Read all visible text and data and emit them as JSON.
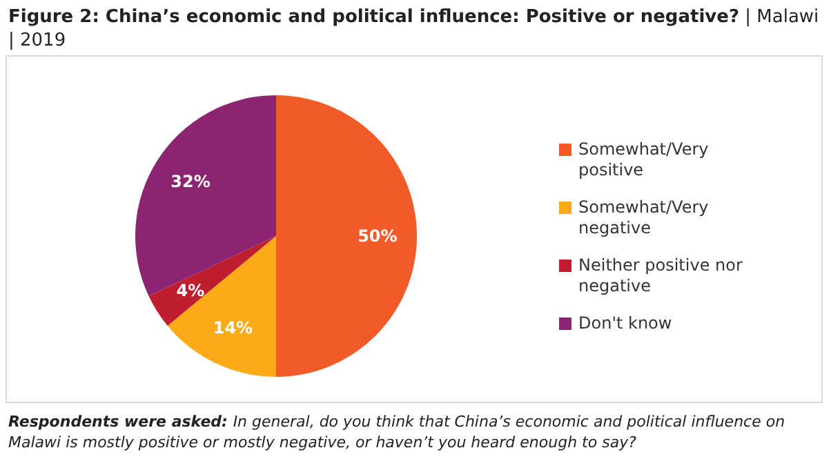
{
  "chart_data": {
    "type": "pie",
    "title": "Figure 2: China’s economic and political influence: Positive or negative?",
    "subtitle": "| Malawi | 2019",
    "categories": [
      "Somewhat/Very positive",
      "Somewhat/Very negative",
      "Neither positive nor negative",
      "Don't know"
    ],
    "values": [
      50,
      14,
      4,
      32
    ],
    "colors": [
      "#f15a29",
      "#fbab18",
      "#be1e2d",
      "#8b2572"
    ],
    "value_labels": [
      "50%",
      "14%",
      "4%",
      "32%"
    ],
    "legend": "right",
    "annotations": [
      "Respondents were asked:",
      "In general, do you think that China’s economic and political influence on Malawi is mostly positive or mostly negative, or haven’t you heard enough to say?"
    ]
  }
}
